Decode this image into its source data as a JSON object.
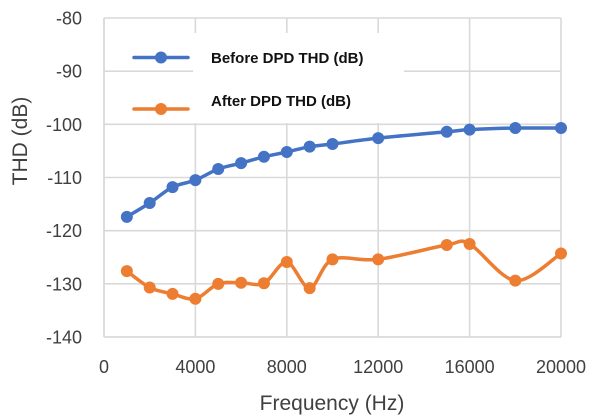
{
  "chart_data": {
    "type": "line",
    "title": "",
    "xlabel": "Frequency (Hz)",
    "ylabel": "THD (dB)",
    "xlim": [
      0,
      20000
    ],
    "ylim": [
      -140,
      -80
    ],
    "xticks": [
      0,
      4000,
      8000,
      12000,
      16000,
      20000
    ],
    "xtick_labels": [
      "0",
      "4000",
      "8000",
      "12000",
      "16000",
      "20000"
    ],
    "yticks": [
      -80,
      -90,
      -100,
      -110,
      -120,
      -130,
      -140
    ],
    "ytick_labels": [
      "-80",
      "-90",
      "-100",
      "-110",
      "-120",
      "-130",
      "-140"
    ],
    "grid": true,
    "legend_position": "top-left",
    "x": [
      1000,
      2000,
      3000,
      4000,
      5000,
      6000,
      7000,
      8000,
      9000,
      10000,
      12000,
      15000,
      16000,
      18000,
      20000
    ],
    "series": [
      {
        "name": "Before DPD THD (dB)",
        "color": "#4472C4",
        "values": [
          -117.4,
          -114.8,
          -111.8,
          -110.5,
          -108.4,
          -107.3,
          -106.1,
          -105.2,
          -104.2,
          -103.7,
          -102.6,
          -101.4,
          -101.0,
          -100.7,
          -100.7
        ]
      },
      {
        "name": "After DPD THD (dB)",
        "color": "#ED7D31",
        "values": [
          -127.6,
          -130.7,
          -131.9,
          -132.8,
          -130.0,
          -129.8,
          -129.9,
          -125.9,
          -130.8,
          -125.4,
          -125.4,
          -122.7,
          -122.5,
          -129.4,
          -124.3
        ]
      }
    ]
  }
}
